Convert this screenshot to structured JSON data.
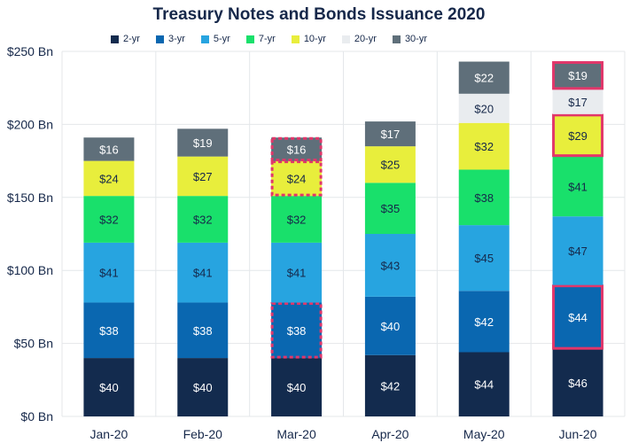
{
  "chart_data": {
    "type": "bar",
    "stacked": true,
    "title": "Treasury Notes and Bonds Issuance 2020",
    "categories": [
      "Jan-20",
      "Feb-20",
      "Mar-20",
      "Apr-20",
      "May-20",
      "Jun-20"
    ],
    "ylim": [
      0,
      250
    ],
    "yticks": [
      {
        "value": 0,
        "label": "$0 Bn"
      },
      {
        "value": 50,
        "label": "$50 Bn"
      },
      {
        "value": 100,
        "label": "$100 Bn"
      },
      {
        "value": 150,
        "label": "$150 Bn"
      },
      {
        "value": 200,
        "label": "$200 Bn"
      },
      {
        "value": 250,
        "label": "$250 Bn"
      }
    ],
    "grid": true,
    "legend_position": "top",
    "series": [
      {
        "name": "2-yr",
        "color": "#132b4e",
        "label_color": "#ffffff",
        "values": [
          40,
          40,
          40,
          42,
          44,
          46
        ]
      },
      {
        "name": "3-yr",
        "color": "#0a67b0",
        "label_color": "#ffffff",
        "values": [
          38,
          38,
          38,
          40,
          42,
          44
        ]
      },
      {
        "name": "5-yr",
        "color": "#27a4e0",
        "label_color": "#16284a",
        "values": [
          41,
          41,
          41,
          43,
          45,
          47
        ]
      },
      {
        "name": "7-yr",
        "color": "#19e06b",
        "label_color": "#16284a",
        "values": [
          32,
          32,
          32,
          35,
          38,
          41
        ]
      },
      {
        "name": "10-yr",
        "color": "#e8ee3c",
        "label_color": "#16284a",
        "values": [
          24,
          27,
          24,
          25,
          32,
          29
        ]
      },
      {
        "name": "20-yr",
        "color": "#e9ecef",
        "label_color": "#16284a",
        "values": [
          null,
          null,
          null,
          null,
          20,
          17
        ]
      },
      {
        "name": "30-yr",
        "color": "#5f6f7a",
        "label_color": "#ffffff",
        "values": [
          16,
          19,
          16,
          17,
          22,
          19
        ]
      }
    ],
    "data_label_prefix": "$",
    "highlights": [
      {
        "category": "Mar-20",
        "series": "3-yr",
        "style": "dashed"
      },
      {
        "category": "Mar-20",
        "series": "10-yr",
        "style": "dashed"
      },
      {
        "category": "Mar-20",
        "series": "30-yr",
        "style": "dashed"
      },
      {
        "category": "Jun-20",
        "series": "3-yr",
        "style": "solid"
      },
      {
        "category": "Jun-20",
        "series": "10-yr",
        "style": "solid"
      },
      {
        "category": "Jun-20",
        "series": "30-yr",
        "style": "solid"
      }
    ],
    "highlight_color": "#e2366a"
  }
}
